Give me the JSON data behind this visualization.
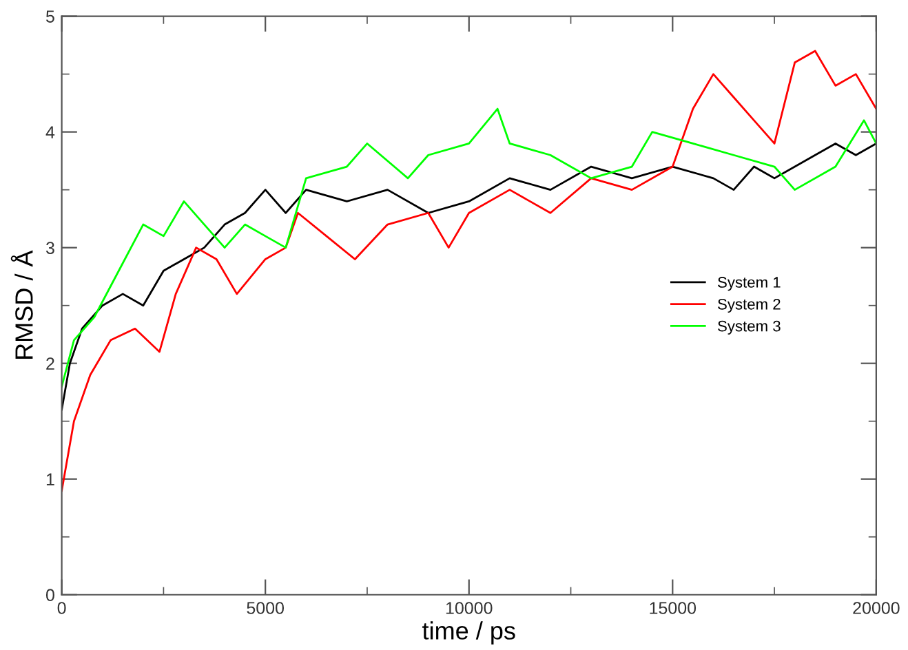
{
  "chart_data": {
    "type": "line",
    "xlabel": "time / ps",
    "ylabel": "RMSD / Å",
    "xlim": [
      0,
      20000
    ],
    "ylim": [
      0,
      5
    ],
    "xticks": [
      0,
      5000,
      10000,
      15000,
      20000
    ],
    "yticks": [
      0,
      1,
      2,
      3,
      4,
      5
    ],
    "grid": false,
    "legend": "right",
    "marker": "none",
    "line_style": "solid",
    "series": [
      {
        "name": "System 1",
        "color": "#000000",
        "x": [
          0,
          200,
          500,
          1000,
          1500,
          2000,
          2500,
          3000,
          3500,
          4000,
          4500,
          5000,
          5500,
          6000,
          7000,
          8000,
          9000,
          10000,
          11000,
          12000,
          13000,
          14000,
          15000,
          16000,
          16500,
          17000,
          17500,
          18500,
          19000,
          19500,
          20000
        ],
        "values": [
          1.6,
          2.0,
          2.3,
          2.5,
          2.6,
          2.5,
          2.8,
          2.9,
          3.0,
          3.2,
          3.3,
          3.5,
          3.3,
          3.5,
          3.4,
          3.5,
          3.3,
          3.4,
          3.6,
          3.5,
          3.7,
          3.6,
          3.7,
          3.6,
          3.5,
          3.7,
          3.6,
          3.8,
          3.9,
          3.8,
          3.9
        ]
      },
      {
        "name": "System 2",
        "color": "#ff0000",
        "x": [
          0,
          300,
          700,
          1200,
          1800,
          2400,
          2800,
          3300,
          3800,
          4300,
          5000,
          5500,
          5800,
          6500,
          7200,
          8000,
          9000,
          9500,
          10000,
          11000,
          12000,
          13000,
          14000,
          15000,
          15500,
          16000,
          16500,
          17000,
          17500,
          18000,
          18500,
          19000,
          19500,
          20000
        ],
        "values": [
          0.9,
          1.5,
          1.9,
          2.2,
          2.3,
          2.1,
          2.6,
          3.0,
          2.9,
          2.6,
          2.9,
          3.0,
          3.3,
          3.1,
          2.9,
          3.2,
          3.3,
          3.0,
          3.3,
          3.5,
          3.3,
          3.6,
          3.5,
          3.7,
          4.2,
          4.5,
          4.3,
          4.1,
          3.9,
          4.6,
          4.7,
          4.4,
          4.5,
          4.2
        ]
      },
      {
        "name": "System 3",
        "color": "#00ff00",
        "x": [
          0,
          300,
          800,
          1400,
          2000,
          2500,
          3000,
          3500,
          4000,
          4500,
          5000,
          5500,
          6000,
          7000,
          7500,
          8500,
          9000,
          10000,
          10700,
          11000,
          12000,
          13000,
          14000,
          14500,
          15500,
          16500,
          17500,
          18000,
          19000,
          19700,
          20000
        ],
        "values": [
          1.8,
          2.2,
          2.4,
          2.8,
          3.2,
          3.1,
          3.4,
          3.2,
          3.0,
          3.2,
          3.1,
          3.0,
          3.6,
          3.7,
          3.9,
          3.6,
          3.8,
          3.9,
          4.2,
          3.9,
          3.8,
          3.6,
          3.7,
          4.0,
          3.9,
          3.8,
          3.7,
          3.5,
          3.7,
          4.1,
          3.9
        ]
      }
    ]
  }
}
